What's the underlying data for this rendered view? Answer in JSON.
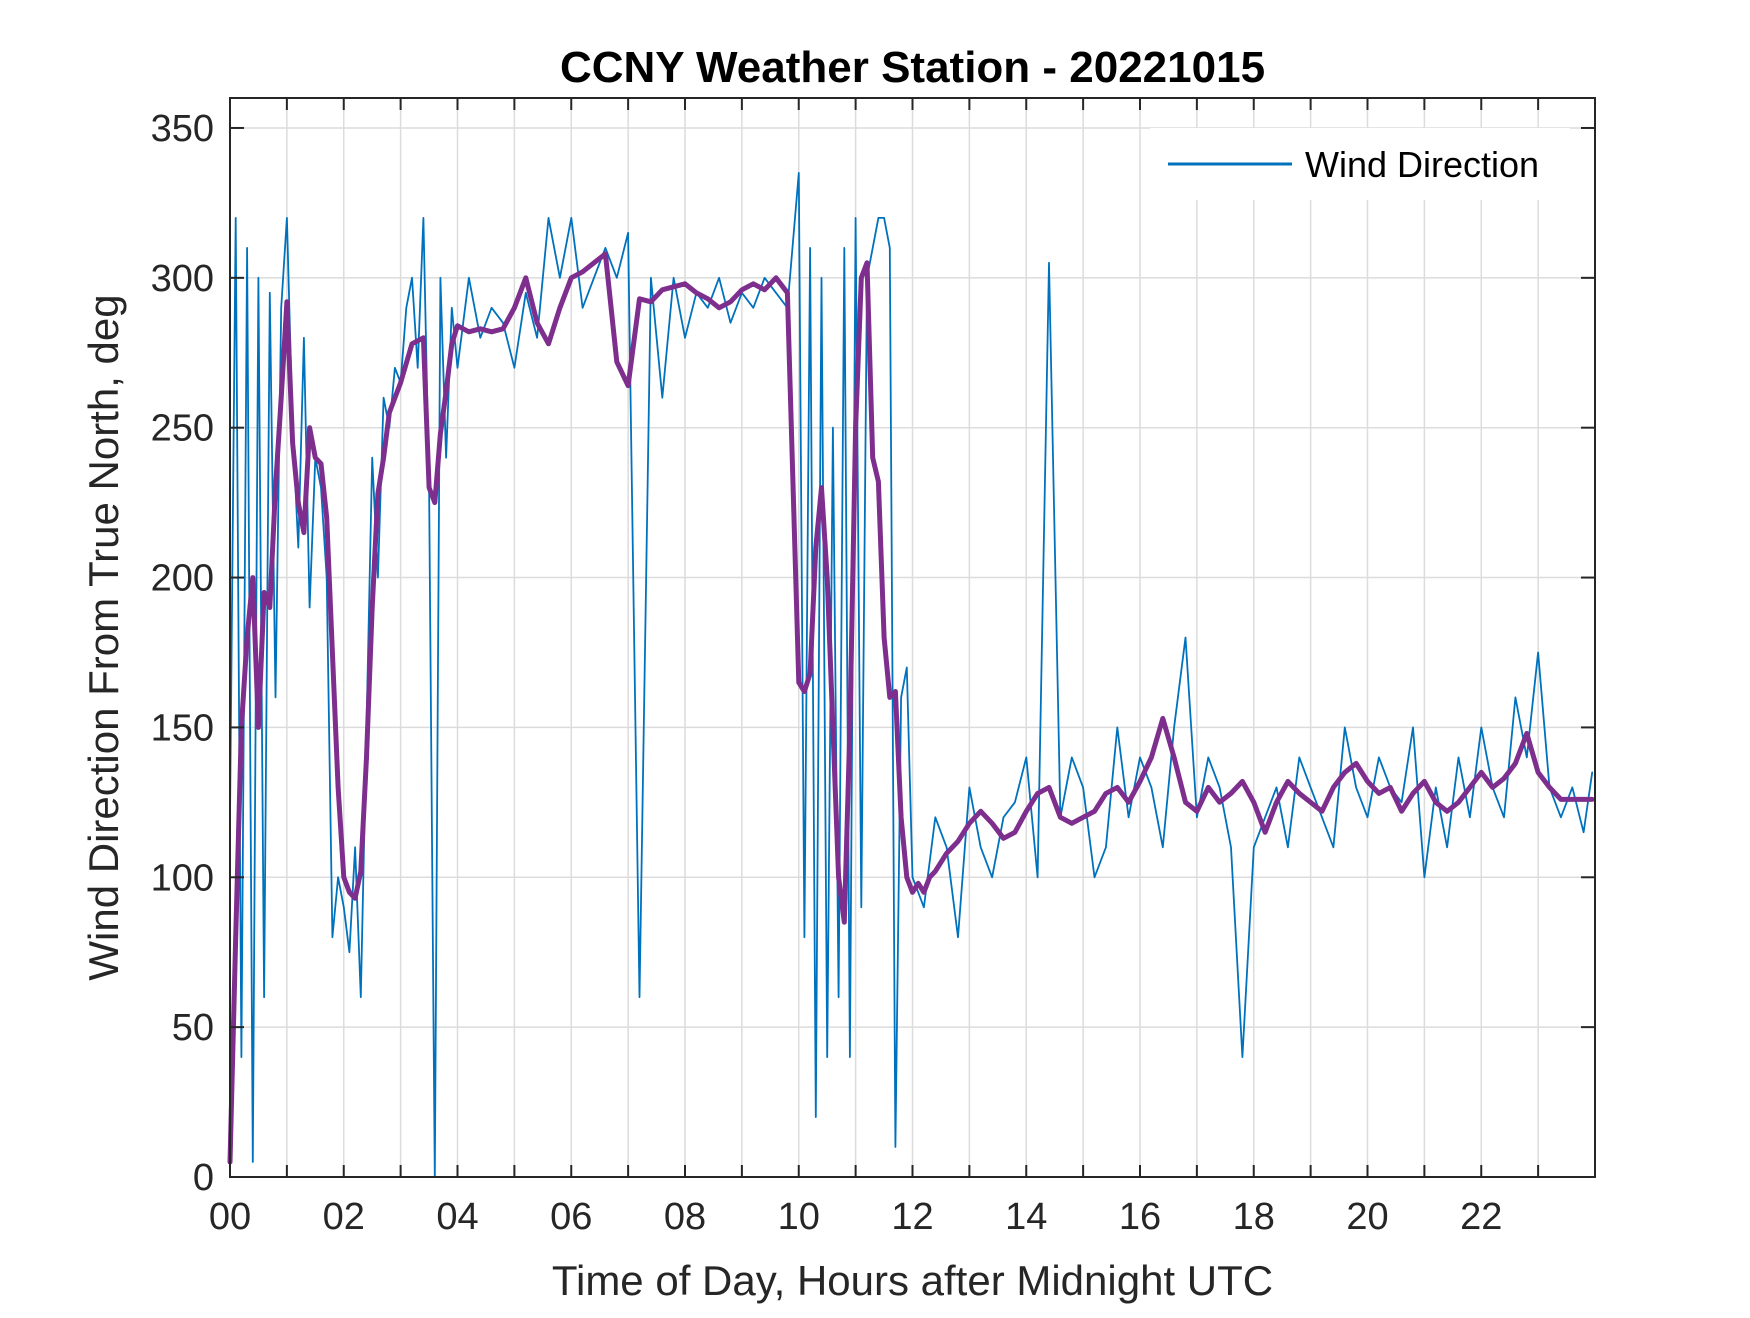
{
  "chart_data": {
    "type": "line",
    "title": "CCNY Weather Station - 20221015",
    "xlabel": "Time of Day, Hours after Midnight UTC",
    "ylabel": "Wind Direction From True North, deg",
    "xlim": [
      0,
      24
    ],
    "ylim": [
      0,
      360
    ],
    "x_ticks": [
      0,
      2,
      4,
      6,
      8,
      10,
      12,
      14,
      16,
      18,
      20,
      22
    ],
    "x_tick_labels": [
      "00",
      "02",
      "04",
      "06",
      "08",
      "10",
      "12",
      "14",
      "16",
      "18",
      "20",
      "22"
    ],
    "x_minor_grid_step": 1,
    "y_ticks": [
      0,
      50,
      100,
      150,
      200,
      250,
      300,
      350
    ],
    "y_tick_labels": [
      "0",
      "50",
      "100",
      "150",
      "200",
      "250",
      "300",
      "350"
    ],
    "grid": true,
    "legend": {
      "placement": "top-right",
      "entries": [
        "Wind Direction"
      ]
    },
    "series": [
      {
        "name": "Wind Direction",
        "color": "#0072BD",
        "style": "raw",
        "x": [
          0.0,
          0.1,
          0.2,
          0.3,
          0.4,
          0.5,
          0.6,
          0.7,
          0.8,
          0.9,
          1.0,
          1.1,
          1.2,
          1.3,
          1.4,
          1.5,
          1.6,
          1.7,
          1.8,
          1.9,
          2.0,
          2.1,
          2.2,
          2.3,
          2.4,
          2.5,
          2.6,
          2.7,
          2.8,
          2.9,
          3.0,
          3.1,
          3.2,
          3.3,
          3.4,
          3.5,
          3.6,
          3.7,
          3.8,
          3.9,
          4.0,
          4.2,
          4.4,
          4.6,
          4.8,
          5.0,
          5.2,
          5.4,
          5.6,
          5.8,
          6.0,
          6.2,
          6.4,
          6.6,
          6.8,
          7.0,
          7.2,
          7.4,
          7.6,
          7.8,
          8.0,
          8.2,
          8.4,
          8.6,
          8.8,
          9.0,
          9.2,
          9.4,
          9.6,
          9.8,
          10.0,
          10.1,
          10.2,
          10.3,
          10.4,
          10.5,
          10.6,
          10.7,
          10.8,
          10.9,
          11.0,
          11.1,
          11.2,
          11.3,
          11.4,
          11.5,
          11.6,
          11.7,
          11.8,
          11.9,
          12.0,
          12.2,
          12.4,
          12.6,
          12.8,
          13.0,
          13.2,
          13.4,
          13.6,
          13.8,
          14.0,
          14.2,
          14.4,
          14.6,
          14.8,
          15.0,
          15.2,
          15.4,
          15.6,
          15.8,
          16.0,
          16.2,
          16.4,
          16.6,
          16.8,
          17.0,
          17.2,
          17.4,
          17.6,
          17.8,
          18.0,
          18.2,
          18.4,
          18.6,
          18.8,
          19.0,
          19.2,
          19.4,
          19.6,
          19.8,
          20.0,
          20.2,
          20.4,
          20.6,
          20.8,
          21.0,
          21.2,
          21.4,
          21.6,
          21.8,
          22.0,
          22.2,
          22.4,
          22.6,
          22.8,
          23.0,
          23.2,
          23.4,
          23.6,
          23.8,
          23.95
        ],
        "y": [
          120,
          320,
          40,
          310,
          5,
          300,
          60,
          295,
          160,
          290,
          320,
          250,
          210,
          280,
          190,
          240,
          230,
          200,
          80,
          100,
          90,
          75,
          110,
          60,
          150,
          240,
          200,
          260,
          250,
          270,
          265,
          290,
          300,
          270,
          320,
          230,
          0,
          300,
          240,
          290,
          270,
          300,
          280,
          290,
          285,
          270,
          295,
          280,
          320,
          300,
          320,
          290,
          300,
          310,
          300,
          315,
          60,
          300,
          260,
          300,
          280,
          295,
          290,
          300,
          285,
          295,
          290,
          300,
          295,
          290,
          335,
          80,
          310,
          20,
          300,
          40,
          250,
          60,
          310,
          40,
          320,
          90,
          300,
          310,
          320,
          320,
          310,
          10,
          160,
          170,
          100,
          90,
          120,
          110,
          80,
          130,
          110,
          100,
          120,
          125,
          140,
          100,
          305,
          120,
          140,
          130,
          100,
          110,
          150,
          120,
          140,
          130,
          110,
          150,
          180,
          120,
          140,
          130,
          110,
          40,
          110,
          120,
          130,
          110,
          140,
          130,
          120,
          110,
          150,
          130,
          120,
          140,
          130,
          125,
          150,
          100,
          130,
          110,
          140,
          120,
          150,
          130,
          120,
          160,
          140,
          175,
          130,
          120,
          130,
          115,
          135
        ]
      },
      {
        "name": "",
        "color": "#7E2F8E",
        "style": "smoothed",
        "x": [
          0.0,
          0.1,
          0.2,
          0.3,
          0.4,
          0.5,
          0.6,
          0.7,
          0.8,
          0.9,
          1.0,
          1.1,
          1.2,
          1.3,
          1.4,
          1.5,
          1.6,
          1.7,
          1.8,
          1.9,
          2.0,
          2.1,
          2.2,
          2.3,
          2.4,
          2.5,
          2.6,
          2.7,
          2.8,
          3.0,
          3.2,
          3.4,
          3.5,
          3.6,
          3.7,
          3.8,
          3.9,
          4.0,
          4.2,
          4.4,
          4.6,
          4.8,
          5.0,
          5.2,
          5.4,
          5.6,
          5.8,
          6.0,
          6.2,
          6.4,
          6.6,
          6.8,
          7.0,
          7.2,
          7.4,
          7.6,
          7.8,
          8.0,
          8.2,
          8.4,
          8.6,
          8.8,
          9.0,
          9.2,
          9.4,
          9.6,
          9.8,
          10.0,
          10.1,
          10.2,
          10.3,
          10.4,
          10.5,
          10.6,
          10.7,
          10.8,
          10.9,
          11.0,
          11.1,
          11.2,
          11.3,
          11.4,
          11.5,
          11.6,
          11.7,
          11.8,
          11.9,
          12.0,
          12.1,
          12.2,
          12.3,
          12.4,
          12.6,
          12.8,
          13.0,
          13.2,
          13.4,
          13.6,
          13.8,
          14.0,
          14.2,
          14.4,
          14.6,
          14.8,
          15.0,
          15.2,
          15.4,
          15.6,
          15.8,
          16.0,
          16.2,
          16.4,
          16.6,
          16.8,
          17.0,
          17.2,
          17.4,
          17.6,
          17.8,
          18.0,
          18.2,
          18.4,
          18.6,
          18.8,
          19.0,
          19.2,
          19.4,
          19.6,
          19.8,
          20.0,
          20.2,
          20.4,
          20.6,
          20.8,
          21.0,
          21.2,
          21.4,
          21.6,
          21.8,
          22.0,
          22.2,
          22.4,
          22.6,
          22.8,
          23.0,
          23.2,
          23.4,
          23.6,
          23.8,
          23.95
        ],
        "y": [
          5,
          80,
          150,
          180,
          200,
          150,
          195,
          190,
          230,
          260,
          292,
          245,
          225,
          215,
          250,
          240,
          238,
          220,
          175,
          130,
          100,
          95,
          93,
          102,
          140,
          190,
          228,
          240,
          255,
          265,
          278,
          280,
          230,
          225,
          248,
          262,
          278,
          284,
          282,
          283,
          282,
          283,
          290,
          300,
          285,
          278,
          290,
          300,
          302,
          305,
          308,
          272,
          264,
          293,
          292,
          296,
          297,
          298,
          295,
          293,
          290,
          292,
          296,
          298,
          296,
          300,
          295,
          165,
          162,
          168,
          210,
          230,
          200,
          150,
          100,
          85,
          150,
          250,
          300,
          305,
          240,
          232,
          180,
          160,
          162,
          120,
          100,
          95,
          98,
          95,
          100,
          102,
          108,
          112,
          118,
          122,
          118,
          113,
          115,
          122,
          128,
          130,
          120,
          118,
          120,
          122,
          128,
          130,
          125,
          132,
          140,
          153,
          140,
          125,
          122,
          130,
          125,
          128,
          132,
          125,
          115,
          125,
          132,
          128,
          125,
          122,
          130,
          135,
          138,
          132,
          128,
          130,
          122,
          128,
          132,
          125,
          122,
          125,
          130,
          135,
          130,
          133,
          138,
          148,
          135,
          130,
          126,
          126,
          126,
          126
        ]
      }
    ]
  }
}
